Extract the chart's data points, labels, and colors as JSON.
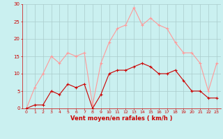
{
  "hours": [
    0,
    1,
    2,
    3,
    4,
    5,
    6,
    7,
    8,
    9,
    10,
    11,
    12,
    13,
    14,
    15,
    16,
    17,
    18,
    19,
    20,
    21,
    22,
    23
  ],
  "wind_avg": [
    0,
    1,
    1,
    5,
    4,
    7,
    6,
    7,
    0,
    4,
    10,
    11,
    11,
    12,
    13,
    12,
    10,
    10,
    11,
    8,
    5,
    5,
    3,
    3
  ],
  "wind_gust": [
    0,
    6,
    10,
    15,
    13,
    16,
    15,
    16,
    1,
    13,
    19,
    23,
    24,
    29,
    24,
    26,
    24,
    23,
    19,
    16,
    16,
    13,
    5,
    13
  ],
  "bg_color": "#caf0f0",
  "grid_color": "#aacccc",
  "line_avg_color": "#cc0000",
  "line_gust_color": "#ff9999",
  "xlabel": "Vent moyen/en rafales ( km/h )",
  "ylim": [
    0,
    30
  ],
  "yticks": [
    0,
    5,
    10,
    15,
    20,
    25,
    30
  ],
  "axis_color": "#cc0000",
  "marker": "+"
}
